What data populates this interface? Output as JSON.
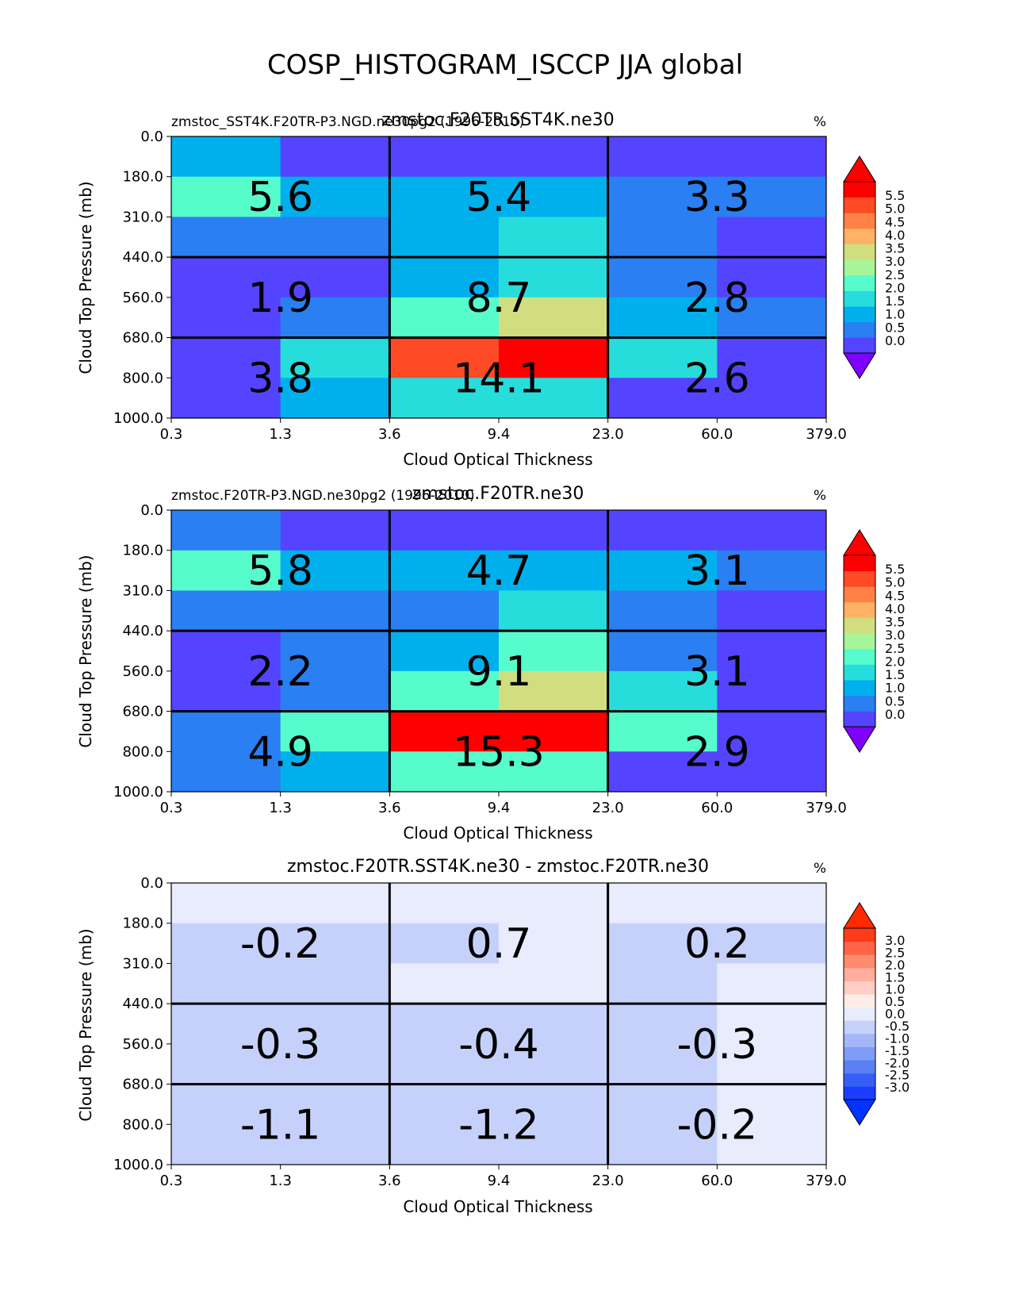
{
  "title": "COSP_HISTOGRAM_ISCCP JJA global",
  "chart_data": [
    {
      "type": "heatmap",
      "left_title": "zmstoc_SST4K.F20TR-P3.NGD.ne30pg2 (1996-2010)",
      "center_title": "zmstoc.F20TR.SST4K.ne30",
      "units": "%",
      "xlabel": "Cloud Optical Thickness",
      "ylabel": "Cloud Top Pressure (mb)",
      "x_ticks": [
        "0.3",
        "1.3",
        "3.6",
        "9.4",
        "23.0",
        "60.0",
        "379.0"
      ],
      "y_ticks": [
        "0.0",
        "180.0",
        "310.0",
        "440.0",
        "560.0",
        "680.0",
        "800.0",
        "1000.0"
      ],
      "values": [
        [
          1.3,
          0.1,
          0.1,
          0.1,
          0.1,
          0.1
        ],
        [
          2.0,
          1.4,
          1.4,
          1.4,
          0.9,
          0.9
        ],
        [
          0.9,
          0.9,
          1.4,
          1.9,
          0.9,
          0.1
        ],
        [
          0.1,
          0.1,
          1.4,
          1.9,
          0.9,
          0.1
        ],
        [
          0.1,
          0.9,
          2.3,
          3.2,
          1.4,
          0.9
        ],
        [
          0.1,
          1.9,
          4.7,
          5.8,
          1.9,
          0.1
        ],
        [
          0.1,
          1.4,
          1.9,
          1.9,
          0.1,
          0.1
        ]
      ],
      "box_totals": [
        [
          "5.6",
          "5.4",
          "3.3"
        ],
        [
          "1.9",
          "8.7",
          "2.8"
        ],
        [
          "3.8",
          "14.1",
          "2.6"
        ]
      ],
      "colorbar_ticks": [
        "5.5",
        "5.0",
        "4.5",
        "4.0",
        "3.5",
        "3.0",
        "2.5",
        "2.0",
        "1.5",
        "1.0",
        "0.5",
        "0.0"
      ],
      "colors": [
        "#5544ff",
        "#2a7ff2",
        "#00b0ed",
        "#27dddc",
        "#56fccb",
        "#a6f59a",
        "#d0de7f",
        "#ffb264",
        "#ff8146",
        "#ff4a26",
        "#ff0000"
      ],
      "under_color": "#8000ff",
      "over_color": "#ff0000"
    },
    {
      "type": "heatmap",
      "left_title": "zmstoc.F20TR-P3.NGD.ne30pg2 (1996-2010)",
      "center_title": "zmstoc.F20TR.ne30",
      "units": "%",
      "xlabel": "Cloud Optical Thickness",
      "ylabel": "Cloud Top Pressure (mb)",
      "x_ticks": [
        "0.3",
        "1.3",
        "3.6",
        "9.4",
        "23.0",
        "60.0",
        "379.0"
      ],
      "y_ticks": [
        "0.0",
        "180.0",
        "310.0",
        "440.0",
        "560.0",
        "680.0",
        "800.0",
        "1000.0"
      ],
      "values": [
        [
          0.9,
          0.1,
          0.1,
          0.1,
          0.1,
          0.1
        ],
        [
          2.0,
          1.4,
          1.4,
          1.4,
          1.4,
          0.9
        ],
        [
          0.9,
          0.9,
          0.9,
          1.9,
          0.9,
          0.1
        ],
        [
          0.1,
          0.9,
          1.4,
          2.4,
          0.9,
          0.1
        ],
        [
          0.1,
          0.9,
          2.3,
          3.2,
          1.9,
          0.1
        ],
        [
          0.9,
          2.4,
          5.3,
          5.8,
          2.4,
          0.1
        ],
        [
          0.9,
          1.4,
          2.4,
          2.4,
          0.1,
          0.1
        ]
      ],
      "box_totals": [
        [
          "5.8",
          "4.7",
          "3.1"
        ],
        [
          "2.2",
          "9.1",
          "3.1"
        ],
        [
          "4.9",
          "15.3",
          "2.9"
        ]
      ],
      "colorbar_ticks": [
        "5.5",
        "5.0",
        "4.5",
        "4.0",
        "3.5",
        "3.0",
        "2.5",
        "2.0",
        "1.5",
        "1.0",
        "0.5",
        "0.0"
      ],
      "colors": [
        "#5544ff",
        "#2a7ff2",
        "#00b0ed",
        "#27dddc",
        "#56fccb",
        "#a6f59a",
        "#d0de7f",
        "#ffb264",
        "#ff8146",
        "#ff4a26",
        "#ff0000"
      ],
      "under_color": "#8000ff",
      "over_color": "#ff0000"
    },
    {
      "type": "heatmap",
      "left_title": "",
      "center_title": "zmstoc.F20TR.SST4K.ne30 - zmstoc.F20TR.ne30",
      "units": "%",
      "xlabel": "Cloud Optical Thickness",
      "ylabel": "Cloud Top Pressure (mb)",
      "x_ticks": [
        "0.3",
        "1.3",
        "3.6",
        "9.4",
        "23.0",
        "60.0",
        "379.0"
      ],
      "y_ticks": [
        "0.0",
        "180.0",
        "310.0",
        "440.0",
        "560.0",
        "680.0",
        "800.0",
        "1000.0"
      ],
      "values": [
        [
          0.2,
          0.2,
          0.2,
          0.2,
          0.2,
          0.2
        ],
        [
          -0.2,
          -0.2,
          -0.2,
          0.2,
          -0.2,
          -0.2
        ],
        [
          -0.2,
          -0.2,
          0.2,
          0.2,
          -0.2,
          0.2
        ],
        [
          -0.2,
          -0.2,
          -0.2,
          -0.2,
          -0.2,
          0.2
        ],
        [
          -0.2,
          -0.2,
          -0.2,
          -0.2,
          -0.2,
          0.2
        ],
        [
          -0.2,
          -0.2,
          -0.2,
          -0.2,
          -0.2,
          0.2
        ],
        [
          -0.2,
          -0.2,
          -0.2,
          -0.2,
          -0.2,
          0.2
        ]
      ],
      "box_totals": [
        [
          "-0.2",
          "0.7",
          "0.2"
        ],
        [
          "-0.3",
          "-0.4",
          "-0.3"
        ],
        [
          "-1.1",
          "-1.2",
          "-0.2"
        ]
      ],
      "colorbar_ticks": [
        "3.0",
        "2.5",
        "2.0",
        "1.5",
        "1.0",
        "0.5",
        "0.0",
        "-0.5",
        "-1.0",
        "-1.5",
        "-2.0",
        "-2.5",
        "-3.0"
      ],
      "colors": [
        "#1a3dff",
        "#365ff7",
        "#5b7ff5",
        "#7f9cf7",
        "#a3b6f9",
        "#c6d1fb",
        "#e8ecfc",
        "#fdecea",
        "#ffcdc3",
        "#ffad9c",
        "#ff8b6f",
        "#ff6446",
        "#ff3b19"
      ],
      "under_color": "#0033ff",
      "over_color": "#ff2a00",
      "levels": [
        -3.0,
        -2.5,
        -2.0,
        -1.5,
        -1.0,
        -0.5,
        0.0,
        0.5,
        1.0,
        1.5,
        2.0,
        2.5,
        3.0
      ]
    }
  ]
}
